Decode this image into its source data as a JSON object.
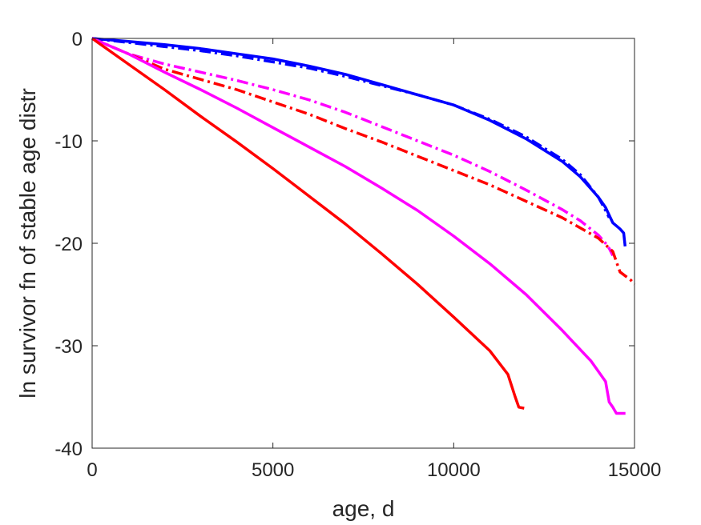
{
  "chart_data": {
    "type": "line",
    "title": "",
    "xlabel": "age, d",
    "ylabel": "ln survivor fn of stable age distr",
    "xlim": [
      0,
      15000
    ],
    "ylim": [
      -40,
      0
    ],
    "xticks": [
      0,
      5000,
      10000,
      15000
    ],
    "yticks": [
      0,
      -10,
      -20,
      -30,
      -40
    ],
    "grid": false,
    "legend": "none",
    "series": [
      {
        "color": "#0000ff",
        "style": "solid",
        "points": [
          [
            0,
            0
          ],
          [
            1000,
            -0.3
          ],
          [
            2000,
            -0.6
          ],
          [
            3000,
            -1.0
          ],
          [
            4000,
            -1.5
          ],
          [
            5000,
            -2.0
          ],
          [
            6000,
            -2.7
          ],
          [
            7000,
            -3.5
          ],
          [
            8000,
            -4.5
          ],
          [
            9000,
            -5.5
          ],
          [
            10000,
            -6.5
          ],
          [
            11000,
            -8.0
          ],
          [
            12000,
            -9.8
          ],
          [
            13000,
            -12.0
          ],
          [
            13500,
            -13.5
          ],
          [
            14000,
            -15.5
          ],
          [
            14200,
            -16.5
          ],
          [
            14400,
            -18.0
          ],
          [
            14500,
            -18.3
          ],
          [
            14600,
            -18.6
          ],
          [
            14700,
            -19.0
          ],
          [
            14740,
            -20.3
          ]
        ]
      },
      {
        "color": "#0000ff",
        "style": "dashdot",
        "points": [
          [
            0,
            0
          ],
          [
            1000,
            -0.4
          ],
          [
            2000,
            -0.8
          ],
          [
            3000,
            -1.2
          ],
          [
            4000,
            -1.7
          ],
          [
            5000,
            -2.3
          ],
          [
            6000,
            -2.9
          ],
          [
            7000,
            -3.7
          ],
          [
            8000,
            -4.6
          ],
          [
            9000,
            -5.5
          ],
          [
            10000,
            -6.5
          ],
          [
            11000,
            -7.9
          ],
          [
            12000,
            -9.6
          ],
          [
            13000,
            -11.8
          ],
          [
            13500,
            -13.3
          ],
          [
            14000,
            -15.5
          ],
          [
            14200,
            -16.8
          ],
          [
            14300,
            -17.5
          ]
        ]
      },
      {
        "color": "#ff00ff",
        "style": "dashdot",
        "points": [
          [
            0,
            0
          ],
          [
            1000,
            -1.5
          ],
          [
            2000,
            -2.5
          ],
          [
            3000,
            -3.3
          ],
          [
            4000,
            -4.1
          ],
          [
            5000,
            -5.0
          ],
          [
            6000,
            -6.0
          ],
          [
            7000,
            -7.2
          ],
          [
            8000,
            -8.6
          ],
          [
            9000,
            -10.0
          ],
          [
            10000,
            -11.4
          ],
          [
            11000,
            -13.0
          ],
          [
            12000,
            -14.8
          ],
          [
            13000,
            -16.7
          ],
          [
            13500,
            -17.8
          ],
          [
            14000,
            -19.2
          ],
          [
            14200,
            -20.0
          ],
          [
            14300,
            -20.5
          ],
          [
            14400,
            -21.2
          ]
        ]
      },
      {
        "color": "#ff0000",
        "style": "dashdot",
        "points": [
          [
            0,
            0
          ],
          [
            1000,
            -1.5
          ],
          [
            2000,
            -3.0
          ],
          [
            3000,
            -4.0
          ],
          [
            4000,
            -5.0
          ],
          [
            5000,
            -6.2
          ],
          [
            6000,
            -7.4
          ],
          [
            7000,
            -8.8
          ],
          [
            8000,
            -10.1
          ],
          [
            9000,
            -11.5
          ],
          [
            10000,
            -12.9
          ],
          [
            11000,
            -14.3
          ],
          [
            12000,
            -15.9
          ],
          [
            13000,
            -17.5
          ],
          [
            14000,
            -19.5
          ],
          [
            14400,
            -20.8
          ],
          [
            14600,
            -22.8
          ],
          [
            14900,
            -23.6
          ],
          [
            15000,
            -24.0
          ]
        ]
      },
      {
        "color": "#ff00ff",
        "style": "solid",
        "points": [
          [
            0,
            0
          ],
          [
            1000,
            -1.5
          ],
          [
            2000,
            -3.3
          ],
          [
            3000,
            -5.0
          ],
          [
            4000,
            -6.8
          ],
          [
            5000,
            -8.7
          ],
          [
            6000,
            -10.6
          ],
          [
            7000,
            -12.5
          ],
          [
            8000,
            -14.6
          ],
          [
            9000,
            -16.8
          ],
          [
            10000,
            -19.3
          ],
          [
            11000,
            -22.0
          ],
          [
            12000,
            -25.0
          ],
          [
            13000,
            -28.5
          ],
          [
            13800,
            -31.5
          ],
          [
            14200,
            -33.5
          ],
          [
            14300,
            -35.5
          ],
          [
            14400,
            -36.0
          ],
          [
            14500,
            -36.6
          ],
          [
            14750,
            -36.6
          ]
        ]
      },
      {
        "color": "#ff0000",
        "style": "solid",
        "points": [
          [
            0,
            0
          ],
          [
            1000,
            -2.5
          ],
          [
            2000,
            -5.0
          ],
          [
            3000,
            -7.6
          ],
          [
            4000,
            -10.1
          ],
          [
            5000,
            -12.7
          ],
          [
            6000,
            -15.4
          ],
          [
            7000,
            -18.1
          ],
          [
            8000,
            -21.0
          ],
          [
            9000,
            -24.0
          ],
          [
            10000,
            -27.2
          ],
          [
            11000,
            -30.5
          ],
          [
            11500,
            -32.8
          ],
          [
            11700,
            -35.0
          ],
          [
            11800,
            -36.0
          ],
          [
            11950,
            -36.1
          ]
        ]
      }
    ]
  }
}
